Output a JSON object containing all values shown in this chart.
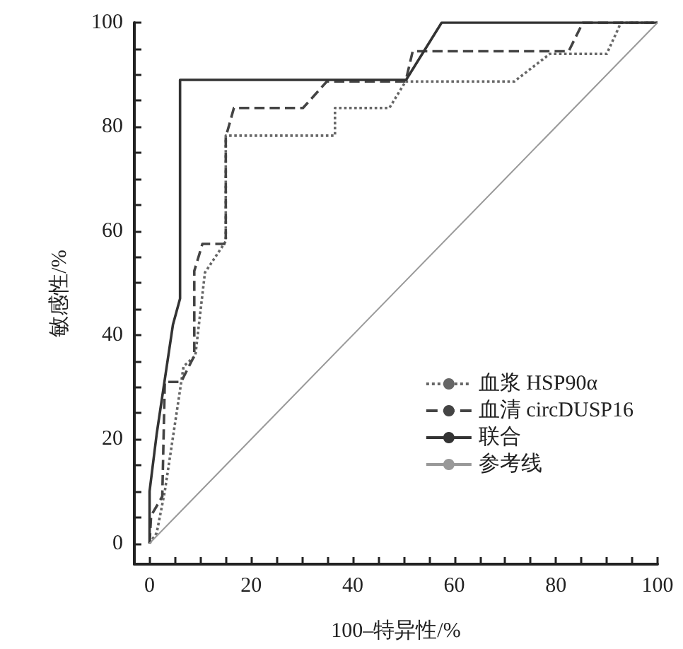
{
  "chart_data": {
    "type": "line",
    "xlabel": "100–特异性/%",
    "ylabel": "敏感性/%",
    "xlim": [
      -3,
      100
    ],
    "ylim": [
      -4,
      100
    ],
    "xticks": [
      0,
      {
        "value": 5,
        "label": null
      },
      {
        "value": 10,
        "label": null
      },
      {
        "value": 15,
        "label": null
      },
      20,
      {
        "value": 25,
        "label": null
      },
      {
        "value": 30,
        "label": null
      },
      {
        "value": 35,
        "label": null
      },
      40,
      {
        "value": 45,
        "label": null
      },
      {
        "value": 50,
        "label": null
      },
      {
        "value": 55,
        "label": null
      },
      60,
      {
        "value": 65,
        "label": null
      },
      {
        "value": 70,
        "label": null
      },
      {
        "value": 75,
        "label": null
      },
      80,
      {
        "value": 85,
        "label": null
      },
      {
        "value": 90,
        "label": null
      },
      {
        "value": 95,
        "label": null
      },
      100
    ],
    "yticks": [
      0,
      {
        "value": 5,
        "label": null
      },
      {
        "value": 10,
        "label": null
      },
      {
        "value": 15,
        "label": null
      },
      20,
      {
        "value": 25,
        "label": null
      },
      {
        "value": 30,
        "label": null
      },
      {
        "value": 35,
        "label": null
      },
      40,
      {
        "value": 45,
        "label": null
      },
      {
        "value": 50,
        "label": null
      },
      {
        "value": 55,
        "label": null
      },
      60,
      {
        "value": 65,
        "label": null
      },
      {
        "value": 70,
        "label": null
      },
      {
        "value": 75,
        "label": null
      },
      80,
      {
        "value": 85,
        "label": null
      },
      {
        "value": 90,
        "label": null
      },
      {
        "value": 95,
        "label": null
      },
      100
    ],
    "grid": false,
    "legend": "bottom right",
    "marker": "none",
    "series": [
      {
        "name": "血浆 HSP90α",
        "color": "#666666",
        "line_style": "dotted",
        "x": [
          0,
          1.4,
          3,
          6.7,
          9,
          10.9,
          15,
          15,
          36.5,
          36.5,
          47.2,
          50.4,
          71.8,
          78.8,
          90,
          92.8,
          100
        ],
        "values": [
          0,
          2,
          10,
          34,
          36,
          52,
          58,
          78.3,
          78.3,
          83.6,
          83.6,
          88.7,
          88.7,
          94,
          94,
          100,
          100
        ]
      },
      {
        "name": "血清 circDUSP16",
        "color": "#444444",
        "line_style": "dashed",
        "x": [
          0,
          0.3,
          2.5,
          3,
          6.2,
          8.8,
          8.8,
          10.4,
          15,
          15,
          16.6,
          30.2,
          34.9,
          50.4,
          51.8,
          82.5,
          85.3,
          100
        ],
        "values": [
          0,
          5.3,
          9,
          31,
          31,
          36,
          52.3,
          57.5,
          57.5,
          78,
          83.6,
          83.6,
          88.7,
          88.7,
          94.5,
          94.5,
          100,
          100
        ]
      },
      {
        "name": "联合",
        "color": "#333333",
        "line_style": "solid",
        "x": [
          0,
          0,
          1.4,
          4.6,
          6,
          6,
          50.5,
          57.5,
          100
        ],
        "values": [
          0,
          10,
          21,
          42,
          47,
          89,
          89,
          100,
          100
        ]
      },
      {
        "name": "参考线",
        "color": "#999999",
        "line_style": "solid",
        "x": [
          0,
          100
        ],
        "values": [
          0,
          100
        ]
      }
    ]
  }
}
